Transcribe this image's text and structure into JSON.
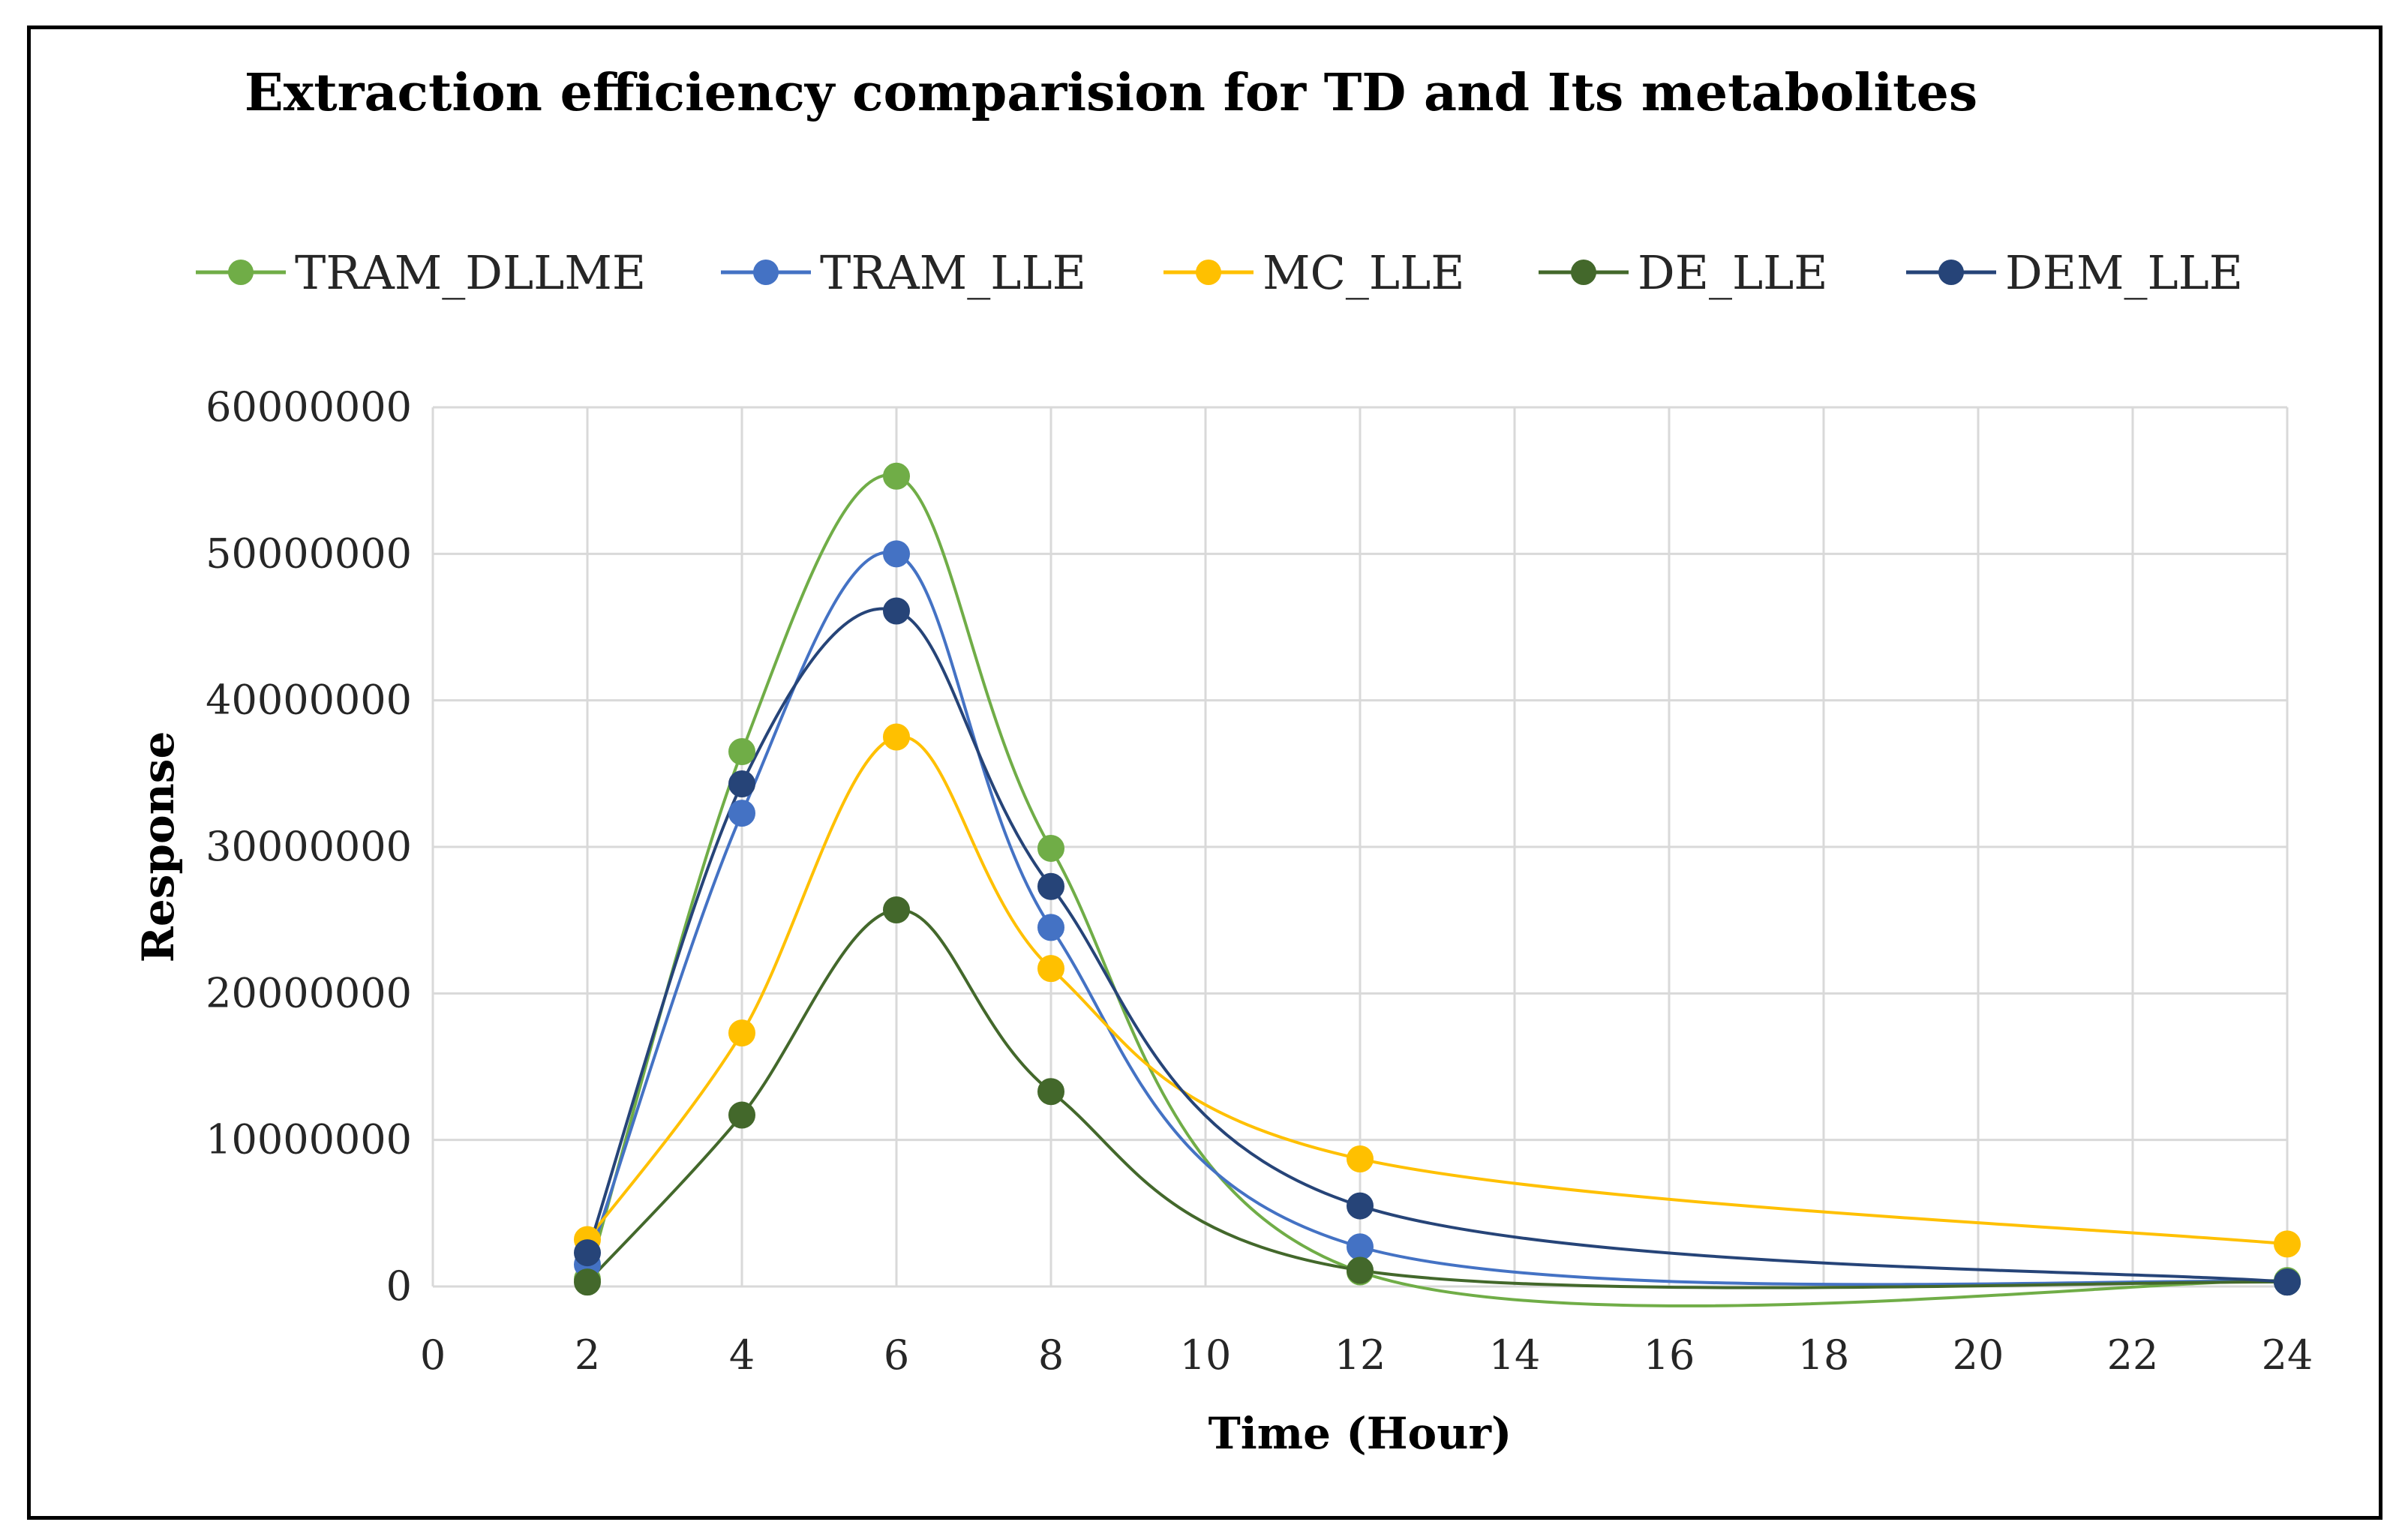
{
  "chart_data": {
    "type": "line",
    "title": "Extraction efficiency comparision for TD and Its metabolites",
    "xlabel": "Time (Hour)",
    "ylabel": "Response",
    "xlim": [
      0,
      24
    ],
    "ylim": [
      0,
      60000000
    ],
    "x_ticks": [
      "0",
      "2",
      "4",
      "6",
      "8",
      "10",
      "12",
      "14",
      "16",
      "18",
      "20",
      "22",
      "24"
    ],
    "y_ticks": [
      "0",
      "10000000",
      "20000000",
      "30000000",
      "40000000",
      "50000000",
      "60000000"
    ],
    "grid": true,
    "legend_position": "top",
    "x": [
      2,
      4,
      6,
      8,
      12,
      24
    ],
    "series": [
      {
        "name": "TRAM_DLLME",
        "color": "#70AD47",
        "values": [
          500000,
          36500000,
          55300000,
          29900000,
          1000000,
          400000
        ]
      },
      {
        "name": "TRAM_LLE",
        "color": "#4472C4",
        "values": [
          1500000,
          32300000,
          50000000,
          24500000,
          2700000,
          300000
        ]
      },
      {
        "name": "MC_LLE",
        "color": "#FFC000",
        "values": [
          3200000,
          17300000,
          37500000,
          21700000,
          8700000,
          2900000
        ]
      },
      {
        "name": "DE_LLE",
        "color": "#43682B",
        "values": [
          300000,
          11700000,
          25700000,
          13300000,
          1100000,
          300000
        ]
      },
      {
        "name": "DEM_LLE",
        "color": "#264478",
        "values": [
          2300000,
          34300000,
          46100000,
          27300000,
          5500000,
          300000
        ]
      }
    ]
  }
}
